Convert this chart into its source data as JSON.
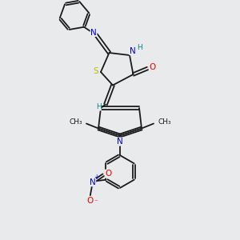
{
  "background_color": "#e8eaec",
  "figsize": [
    3.0,
    3.0
  ],
  "dpi": 100,
  "bond_color": "#1a1a1a",
  "bond_lw": 1.3,
  "atom_colors": {
    "N": "#0000ee",
    "O": "#ee0000",
    "S": "#bbbb00",
    "H": "#008888",
    "C": "#1a1a1a"
  },
  "font_size": 7.5,
  "font_size_small": 6.5,
  "xlim": [
    0,
    10
  ],
  "ylim": [
    0,
    10
  ]
}
